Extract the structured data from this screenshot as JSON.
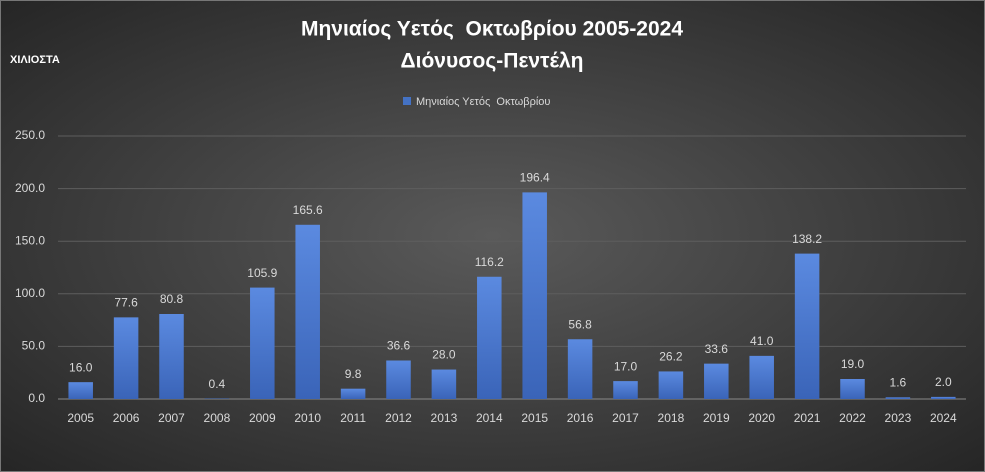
{
  "chart_data": {
    "type": "bar",
    "title": "Μηνιαίος Υετός  Οκτωβρίου 2005-2024",
    "subtitle": "Διόνυσος-Πεντέλη",
    "y_label": "ΧΙΛΙΟΣΤΑ",
    "categories": [
      "2005",
      "2006",
      "2007",
      "2008",
      "2009",
      "2010",
      "2011",
      "2012",
      "2013",
      "2014",
      "2015",
      "2016",
      "2017",
      "2018",
      "2019",
      "2020",
      "2021",
      "2022",
      "2023",
      "2024"
    ],
    "series": [
      {
        "name": "Μηνιαίος Υετός  Οκτωβρίου",
        "color": "#4472c4",
        "values": [
          16.0,
          77.6,
          80.8,
          0.4,
          105.9,
          165.6,
          9.8,
          36.6,
          28.0,
          116.2,
          196.4,
          56.8,
          17.0,
          26.2,
          33.6,
          41.0,
          138.2,
          19.0,
          1.6,
          2.0
        ],
        "value_labels": [
          "16.0",
          "77.6",
          "80.8",
          "0.4",
          "105.9",
          "165.6",
          "9.8",
          "36.6",
          "28.0",
          "116.2",
          "196.4",
          "56.8",
          "17.0",
          "26.2",
          "33.6",
          "41.0",
          "138.2",
          "19.0",
          "1.6",
          "2.0"
        ]
      }
    ],
    "ylim": [
      0,
      250
    ],
    "yticks": [
      {
        "value": 0,
        "label": "0.0"
      },
      {
        "value": 50,
        "label": "50.0"
      },
      {
        "value": 100,
        "label": "100.0"
      },
      {
        "value": 150,
        "label": "150.0"
      },
      {
        "value": 200,
        "label": "200.0"
      },
      {
        "value": 250,
        "label": "250.0"
      }
    ],
    "grid": true,
    "legend": "top"
  }
}
